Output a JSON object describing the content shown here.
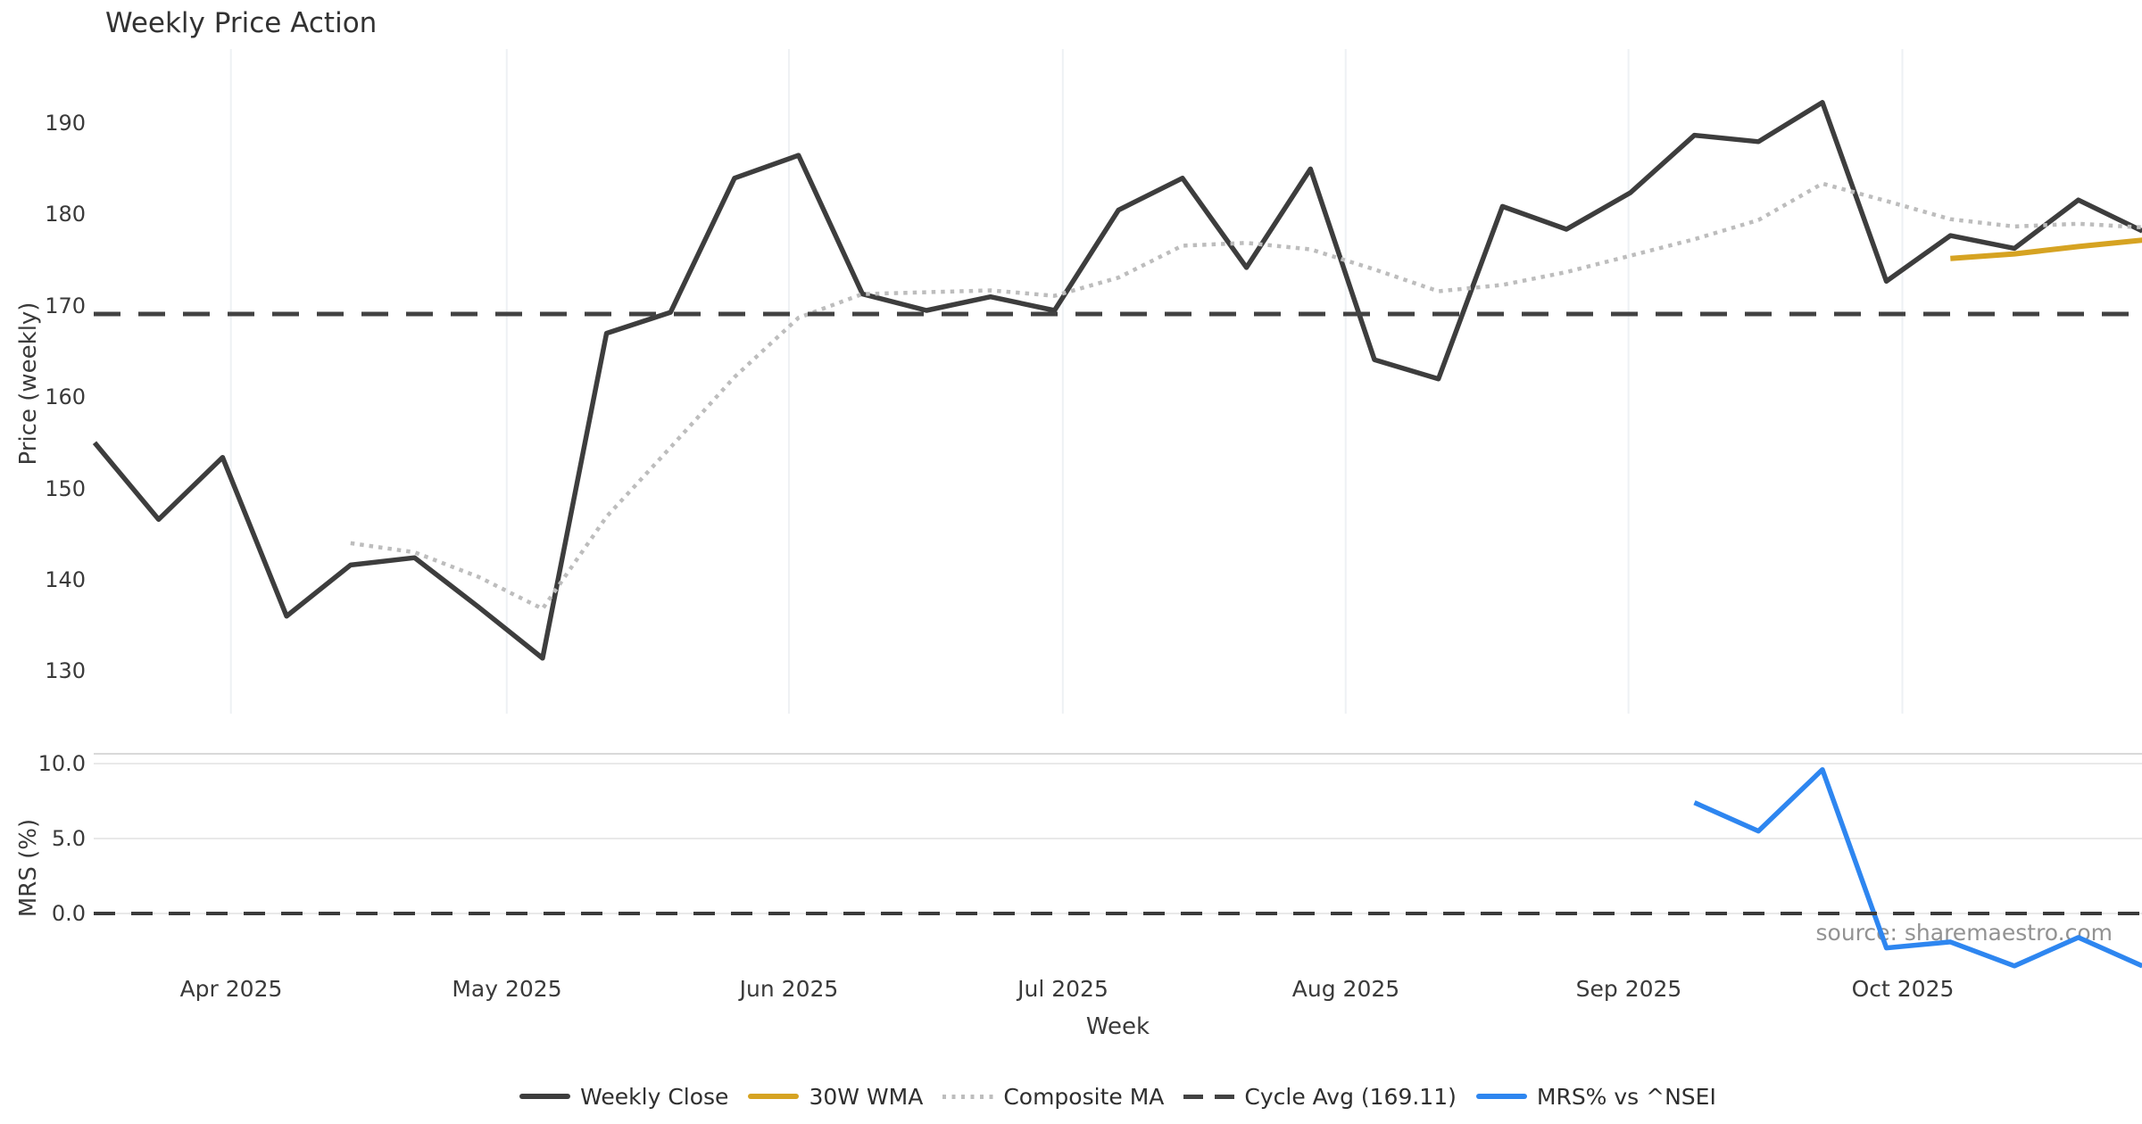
{
  "title": "Weekly Price Action",
  "xlabel": "Week",
  "source_note": "source: sharemaestro.com",
  "colors": {
    "weekly_close": "#3d3d3d",
    "wma_30w": "#d6a322",
    "composite_ma": "#bdbdbd",
    "cycle_avg": "#424242",
    "mrs_line": "#2e86f0",
    "gridline_vertical": "#eef1f4",
    "gridline_horizontal": "#e9e9e9",
    "panel_spine": "#d9d9d9",
    "tick_text": "#3a3a3a",
    "source_text": "#929292"
  },
  "legend": {
    "items": [
      {
        "label": "Weekly Close",
        "swatch": "solid-dark"
      },
      {
        "label": "30W WMA",
        "swatch": "solid-gold"
      },
      {
        "label": "Composite MA",
        "swatch": "dotted-gray"
      },
      {
        "label": "Cycle Avg (169.11)",
        "swatch": "dashed-dark"
      },
      {
        "label": "MRS% vs ^NSEI",
        "swatch": "solid-blue"
      }
    ]
  },
  "chart_data": [
    {
      "type": "line",
      "panel": "price",
      "title": "Weekly Price Action",
      "ylabel": "Price (weekly)",
      "x_unit": "week_index",
      "xlim": [
        0,
        32
      ],
      "ylim": [
        126,
        198
      ],
      "yticks": [
        190,
        180,
        170,
        160,
        150,
        140,
        130
      ],
      "grid": "vertical-months-only",
      "month_ticks": [
        {
          "label": "Apr 2025",
          "x": 2.13
        },
        {
          "label": "May 2025",
          "x": 6.44
        },
        {
          "label": "Jun 2025",
          "x": 10.85
        },
        {
          "label": "Jul 2025",
          "x": 15.13
        },
        {
          "label": "Aug 2025",
          "x": 19.55
        },
        {
          "label": "Sep 2025",
          "x": 23.97
        },
        {
          "label": "Oct 2025",
          "x": 28.25
        }
      ],
      "series": [
        {
          "name": "Weekly Close",
          "color": "#3d3d3d",
          "style": "solid",
          "width": 5.5,
          "dash": null,
          "start_index": 0,
          "values": [
            155.0,
            146.6,
            153.4,
            136.0,
            141.6,
            142.4,
            137.0,
            131.4,
            167.0,
            169.3,
            184.0,
            186.5,
            171.3,
            169.5,
            171.0,
            169.5,
            180.5,
            184.0,
            174.2,
            185.0,
            164.1,
            162.0,
            180.9,
            178.4,
            182.4,
            188.7,
            188.0,
            192.3,
            172.7,
            177.7,
            176.3,
            181.6,
            178.2
          ]
        },
        {
          "name": "30W WMA",
          "color": "#d6a322",
          "style": "solid",
          "width": 6,
          "dash": null,
          "start_index": 29,
          "values": [
            175.2,
            175.7,
            176.5,
            177.2
          ]
        },
        {
          "name": "Composite MA",
          "color": "#bdbdbd",
          "style": "dotted",
          "width": 4.5,
          "dash": [
            4.5,
            6
          ],
          "start_index": 4,
          "values": [
            144.0,
            143.0,
            140.3,
            136.8,
            146.9,
            154.5,
            162.2,
            168.7,
            171.3,
            171.5,
            171.7,
            171.1,
            173.1,
            176.6,
            176.9,
            176.2,
            174.0,
            171.6,
            172.3,
            173.7,
            175.5,
            177.3,
            179.4,
            183.4,
            181.5,
            179.5,
            178.7,
            179.0,
            178.6
          ]
        },
        {
          "name": "Cycle Avg (169.11)",
          "color": "#424242",
          "style": "dashed",
          "width": 5,
          "dash": [
            30,
            20
          ],
          "type": "hline",
          "y": 169.11
        }
      ]
    },
    {
      "type": "line",
      "panel": "mrs",
      "ylabel": "MRS (%)",
      "x_unit": "week_index",
      "xlim": [
        0,
        32
      ],
      "ylim": [
        -4.2,
        10.7
      ],
      "yticks": [
        "10.0",
        "5.0",
        "0.0"
      ],
      "ytick_values": [
        10,
        5,
        0
      ],
      "grid": "horizontal-only",
      "series": [
        {
          "name": "MRS% vs ^NSEI",
          "color": "#2e86f0",
          "style": "solid",
          "width": 5.5,
          "dash": null,
          "start_index": 25,
          "values": [
            7.4,
            5.5,
            9.6,
            -2.3,
            -1.9,
            -3.5,
            -1.6,
            -3.5
          ]
        },
        {
          "name": "Zero line",
          "color": "#3b3b3b",
          "style": "dashed",
          "width": 4,
          "dash": [
            24,
            18
          ],
          "type": "hline",
          "y": 0
        }
      ]
    }
  ]
}
